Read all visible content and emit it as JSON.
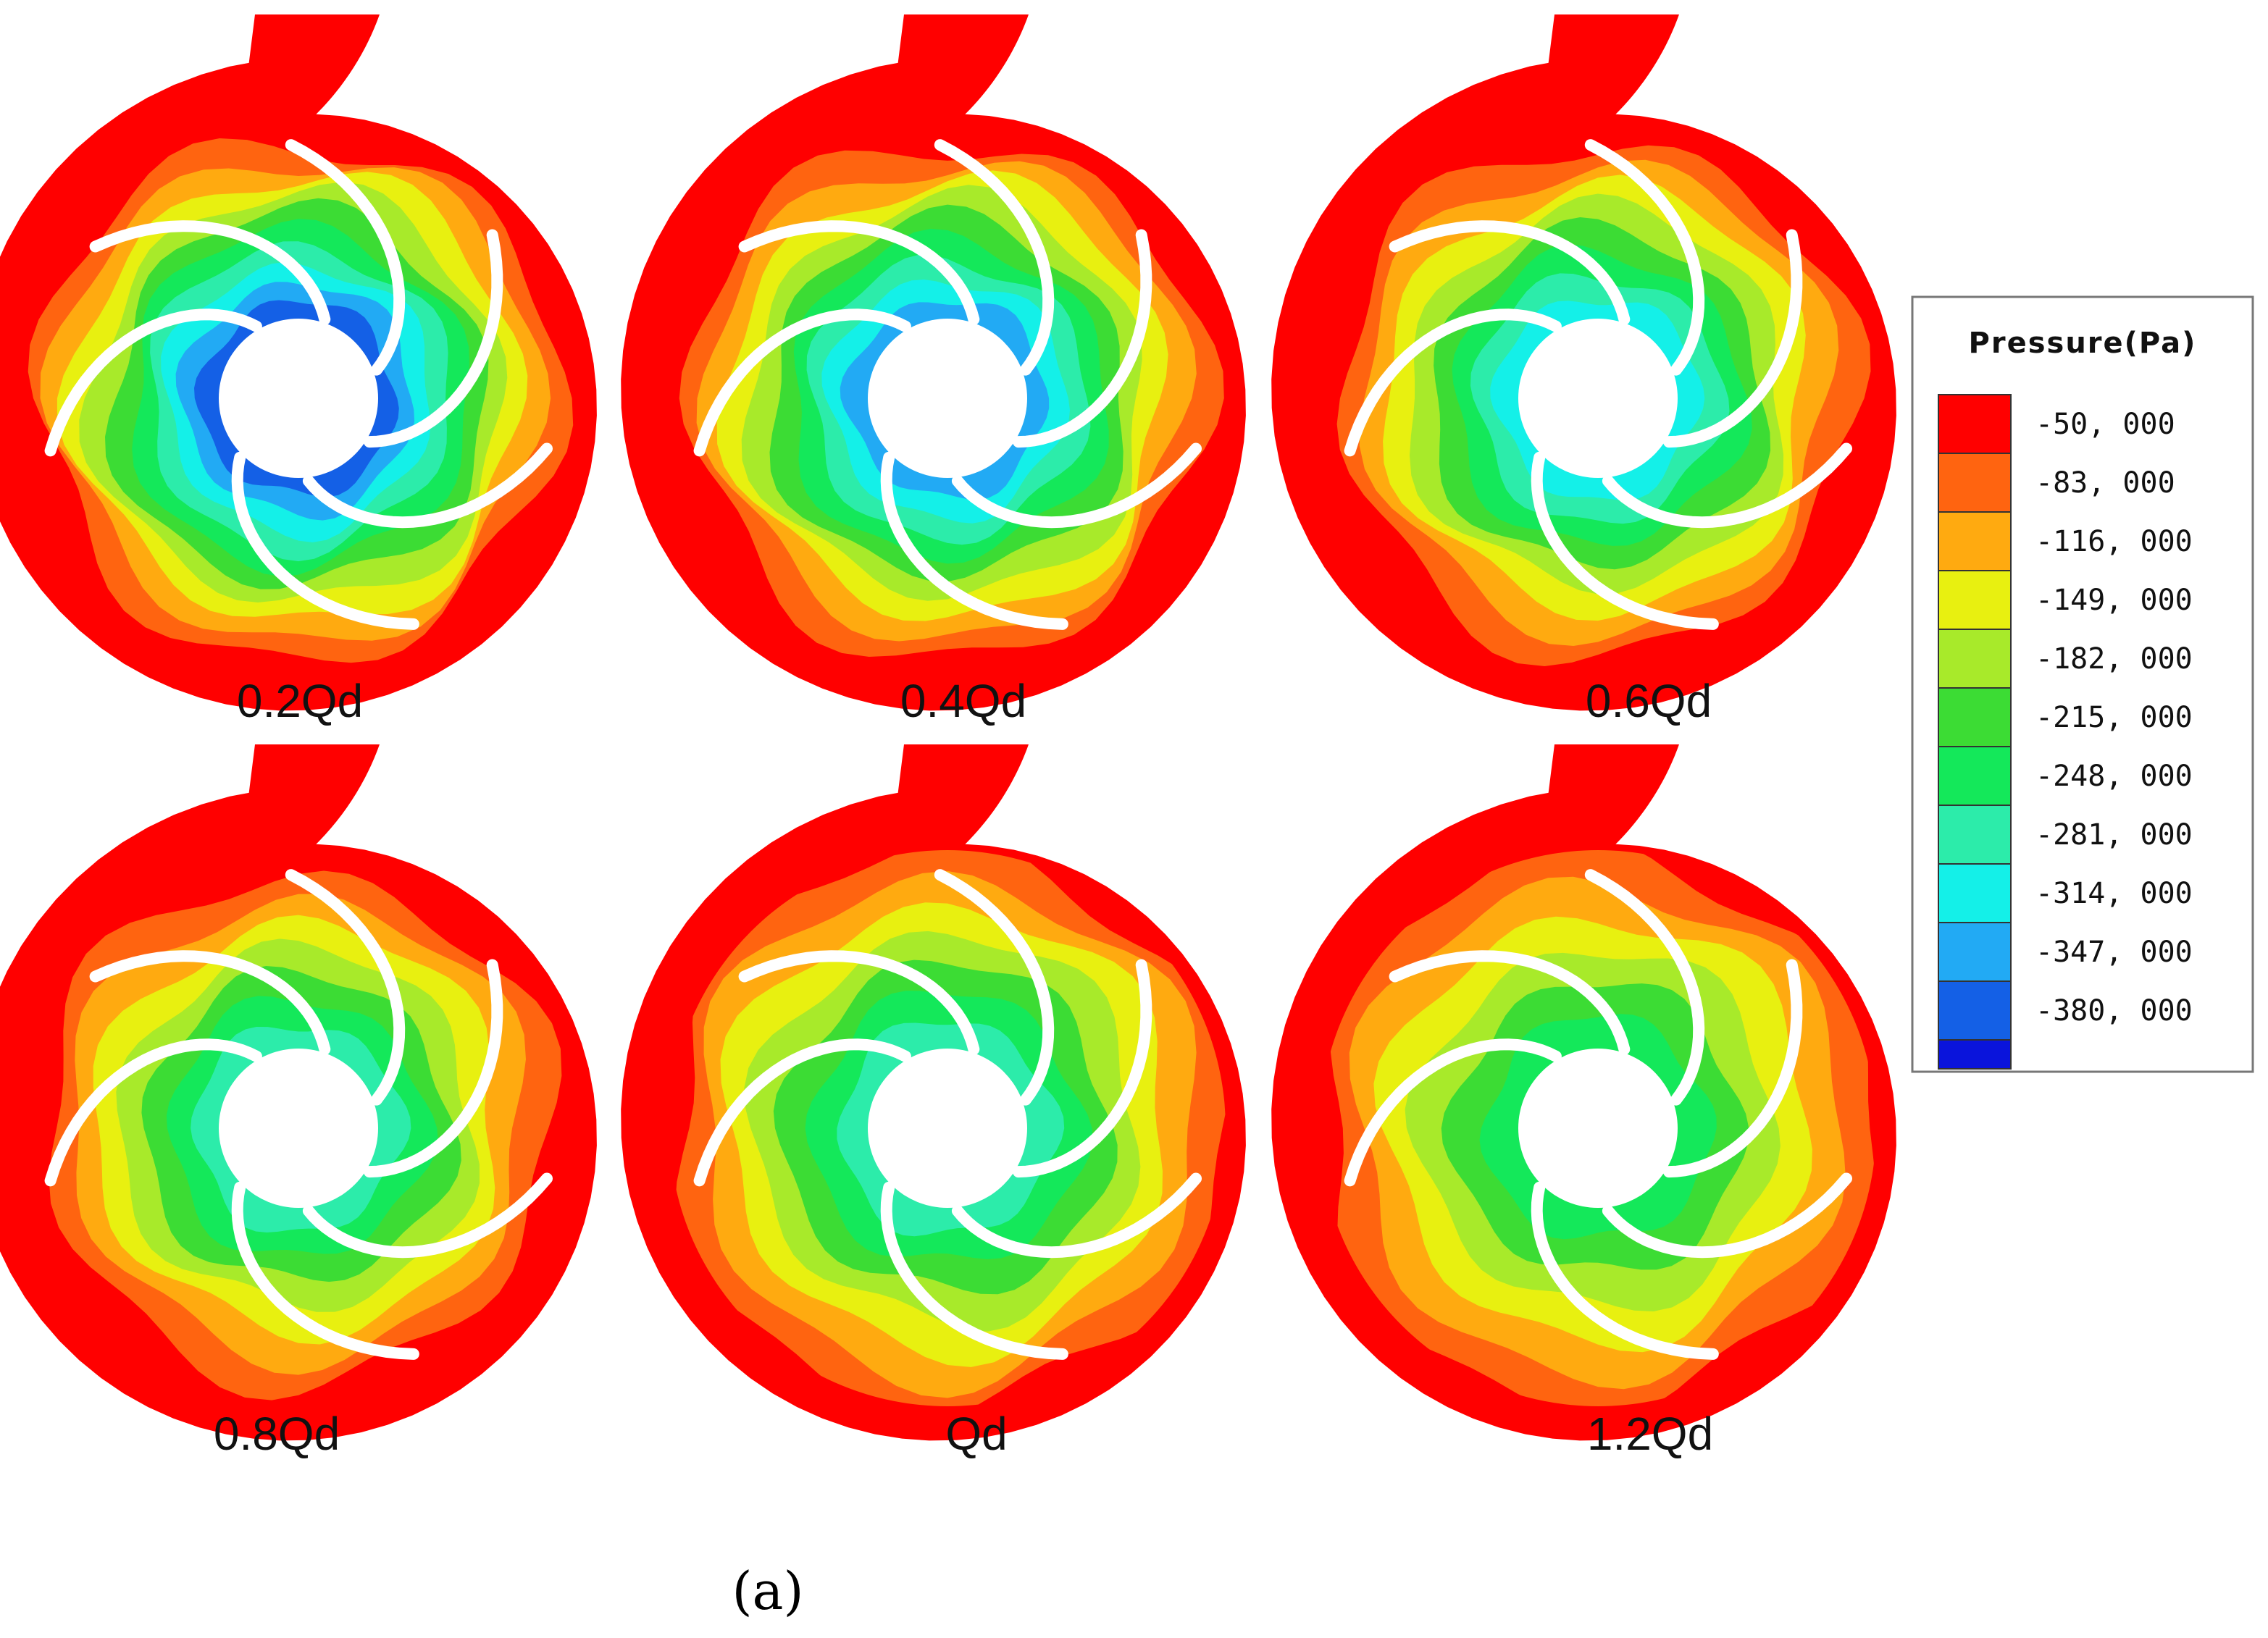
{
  "figure": {
    "subfigure_label": "(a)",
    "panels": [
      {
        "label": "0.2Qd",
        "level": 0
      },
      {
        "label": "0.4Qd",
        "level": 1
      },
      {
        "label": "0.6Qd",
        "level": 2
      },
      {
        "label": "0.8Qd",
        "level": 3
      },
      {
        "label": "Qd",
        "level": 4
      },
      {
        "label": "1.2Qd",
        "level": 5
      }
    ],
    "legend": {
      "title": "Pressure(Pa)",
      "entries": [
        {
          "value": "-50, 000",
          "color": "#ff0000"
        },
        {
          "value": "-83, 000",
          "color": "#ff6410"
        },
        {
          "value": "-116, 000",
          "color": "#ffaa10"
        },
        {
          "value": "-149, 000",
          "color": "#e8f010"
        },
        {
          "value": "-182, 000",
          "color": "#a8ea2a"
        },
        {
          "value": "-215, 000",
          "color": "#3cdc34"
        },
        {
          "value": "-248, 000",
          "color": "#14e85a"
        },
        {
          "value": "-281, 000",
          "color": "#2cecaa"
        },
        {
          "value": "-314, 000",
          "color": "#14f0e8"
        },
        {
          "value": "-347, 000",
          "color": "#22aaf4"
        },
        {
          "value": "-380, 000",
          "color": "#1460e6"
        },
        {
          "value": "",
          "color": "#0a14dc"
        }
      ]
    }
  }
}
